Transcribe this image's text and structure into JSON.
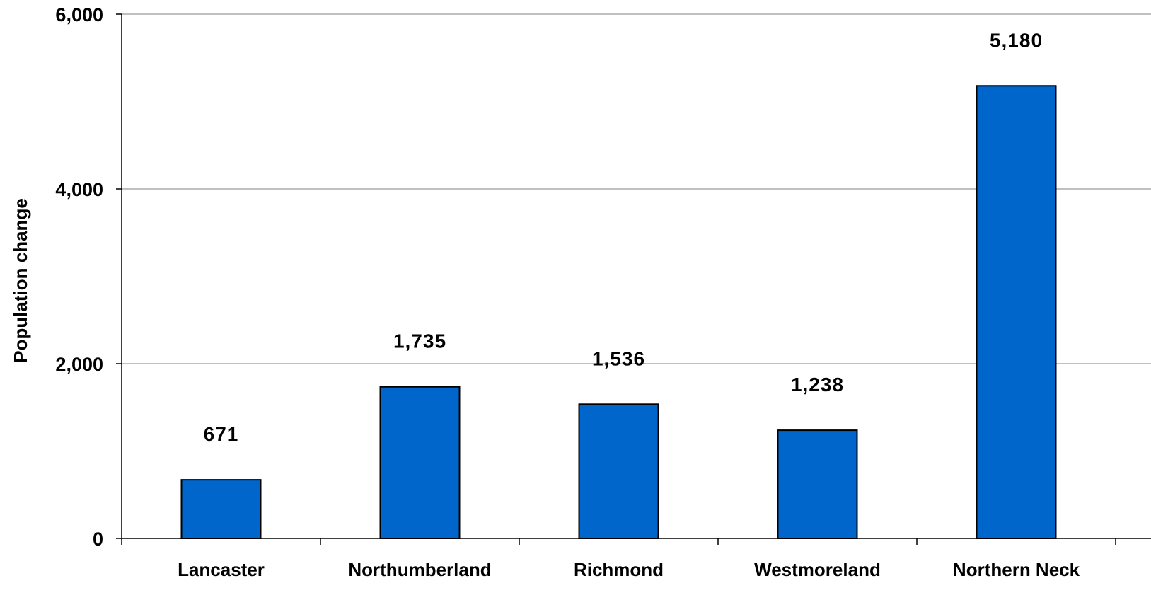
{
  "chart_data": {
    "type": "bar",
    "title": "",
    "xlabel": "",
    "ylabel": "Population change",
    "categories": [
      "Lancaster",
      "Northumberland",
      "Richmond",
      "Westmoreland",
      "Northern Neck"
    ],
    "values": [
      671,
      1735,
      1536,
      1238,
      5180
    ],
    "data_labels": [
      "671",
      "1,735",
      "1,536",
      "1,238",
      "5,180"
    ],
    "ylim": [
      0,
      6000
    ],
    "yticks": [
      0,
      2000,
      4000,
      6000
    ],
    "ytick_labels": [
      "0",
      "2,000",
      "4,000",
      "6,000"
    ],
    "grid": true,
    "legend": "none",
    "colors": {
      "bar_fill": "#0066CC",
      "bar_stroke": "#000000",
      "grid": "#808080",
      "axis": "#000000"
    }
  }
}
